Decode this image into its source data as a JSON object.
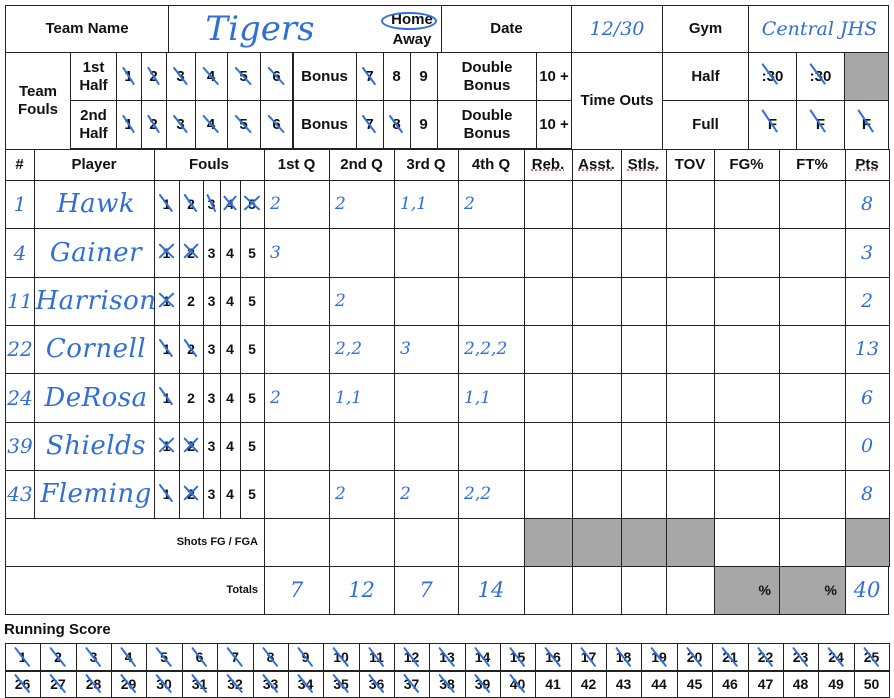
{
  "header": {
    "team_name_label": "Team Name",
    "team_name_value": "Tigers",
    "home_label": "Home",
    "away_label": "Away",
    "home_circled": true,
    "date_label": "Date",
    "date_value": "12/30",
    "gym_label": "Gym",
    "gym_value": "Central JHS"
  },
  "team_fouls": {
    "label": "Team Fouls",
    "first_half_label": "1st Half",
    "second_half_label": "2nd Half",
    "numbers": [
      "1",
      "2",
      "3",
      "4",
      "5",
      "6"
    ],
    "bonus_label": "Bonus",
    "bonus_numbers": [
      "7",
      "8",
      "9"
    ],
    "double_bonus_label": "Double Bonus",
    "double_bonus_value": "10 +",
    "first_half_marked": 7,
    "second_half_marked": 8
  },
  "timeouts": {
    "label": "Time Outs",
    "half_label": "Half",
    "full_label": "Full",
    "half_slots": [
      ":30",
      ":30"
    ],
    "full_slots": [
      "F",
      "F",
      "F"
    ]
  },
  "columns": [
    "#",
    "Player",
    "Fouls",
    "1st Q",
    "2nd Q",
    "3rd Q",
    "4th Q",
    "Reb.",
    "Asst.",
    "Stls.",
    "TOV",
    "FG%",
    "FT%",
    "Pts"
  ],
  "foul_numbers": [
    "1",
    "2",
    "3",
    "4",
    "5"
  ],
  "players": [
    {
      "number": "1",
      "name": "Hawk",
      "fouls": 5,
      "q1": "2",
      "q2": "2",
      "q3": "1,1",
      "q4": "2",
      "pts": "8"
    },
    {
      "number": "4",
      "name": "Gainer",
      "fouls": 2,
      "q1": "3",
      "q2": "",
      "q3": "",
      "q4": "",
      "pts": "3"
    },
    {
      "number": "11",
      "name": "Harrison",
      "fouls": 1,
      "q1": "",
      "q2": "2",
      "q3": "",
      "q4": "",
      "pts": "2"
    },
    {
      "number": "22",
      "name": "Cornell",
      "fouls": 2,
      "q1": "",
      "q2": "2,2",
      "q3": "3",
      "q4": "2,2,2",
      "pts": "13"
    },
    {
      "number": "24",
      "name": "DeRosa",
      "fouls": 1,
      "q1": "2",
      "q2": "1,1",
      "q3": "",
      "q4": "1,1",
      "pts": "6"
    },
    {
      "number": "39",
      "name": "Shields",
      "fouls": 2,
      "q1": "",
      "q2": "",
      "q3": "",
      "q4": "",
      "pts": "0"
    },
    {
      "number": "43",
      "name": "Fleming",
      "fouls": 2,
      "q1": "",
      "q2": "2",
      "q3": "2",
      "q4": "2,2",
      "pts": "8"
    }
  ],
  "shots_label": "Shots  FG  /  FGA",
  "totals": {
    "label": "Totals",
    "q1": "7",
    "q2": "12",
    "q3": "7",
    "q4": "14",
    "fg_pct": "%",
    "ft_pct": "%",
    "pts": "40"
  },
  "running_score": {
    "label": "Running Score",
    "row1": [
      "1",
      "2",
      "3",
      "4",
      "5",
      "6",
      "7",
      "8",
      "9",
      "10",
      "11",
      "12",
      "13",
      "14",
      "15",
      "16",
      "17",
      "18",
      "19",
      "20",
      "21",
      "22",
      "23",
      "24",
      "25"
    ],
    "row2": [
      "26",
      "27",
      "28",
      "29",
      "30",
      "31",
      "32",
      "33",
      "34",
      "35",
      "36",
      "37",
      "38",
      "39",
      "40",
      "41",
      "42",
      "43",
      "44",
      "45",
      "46",
      "47",
      "48",
      "49",
      "50"
    ],
    "marked_up_to": 40
  },
  "colors": {
    "ink": "#2f6fd6",
    "grey_cell": "#a7a7a7",
    "lines": "#222222"
  }
}
